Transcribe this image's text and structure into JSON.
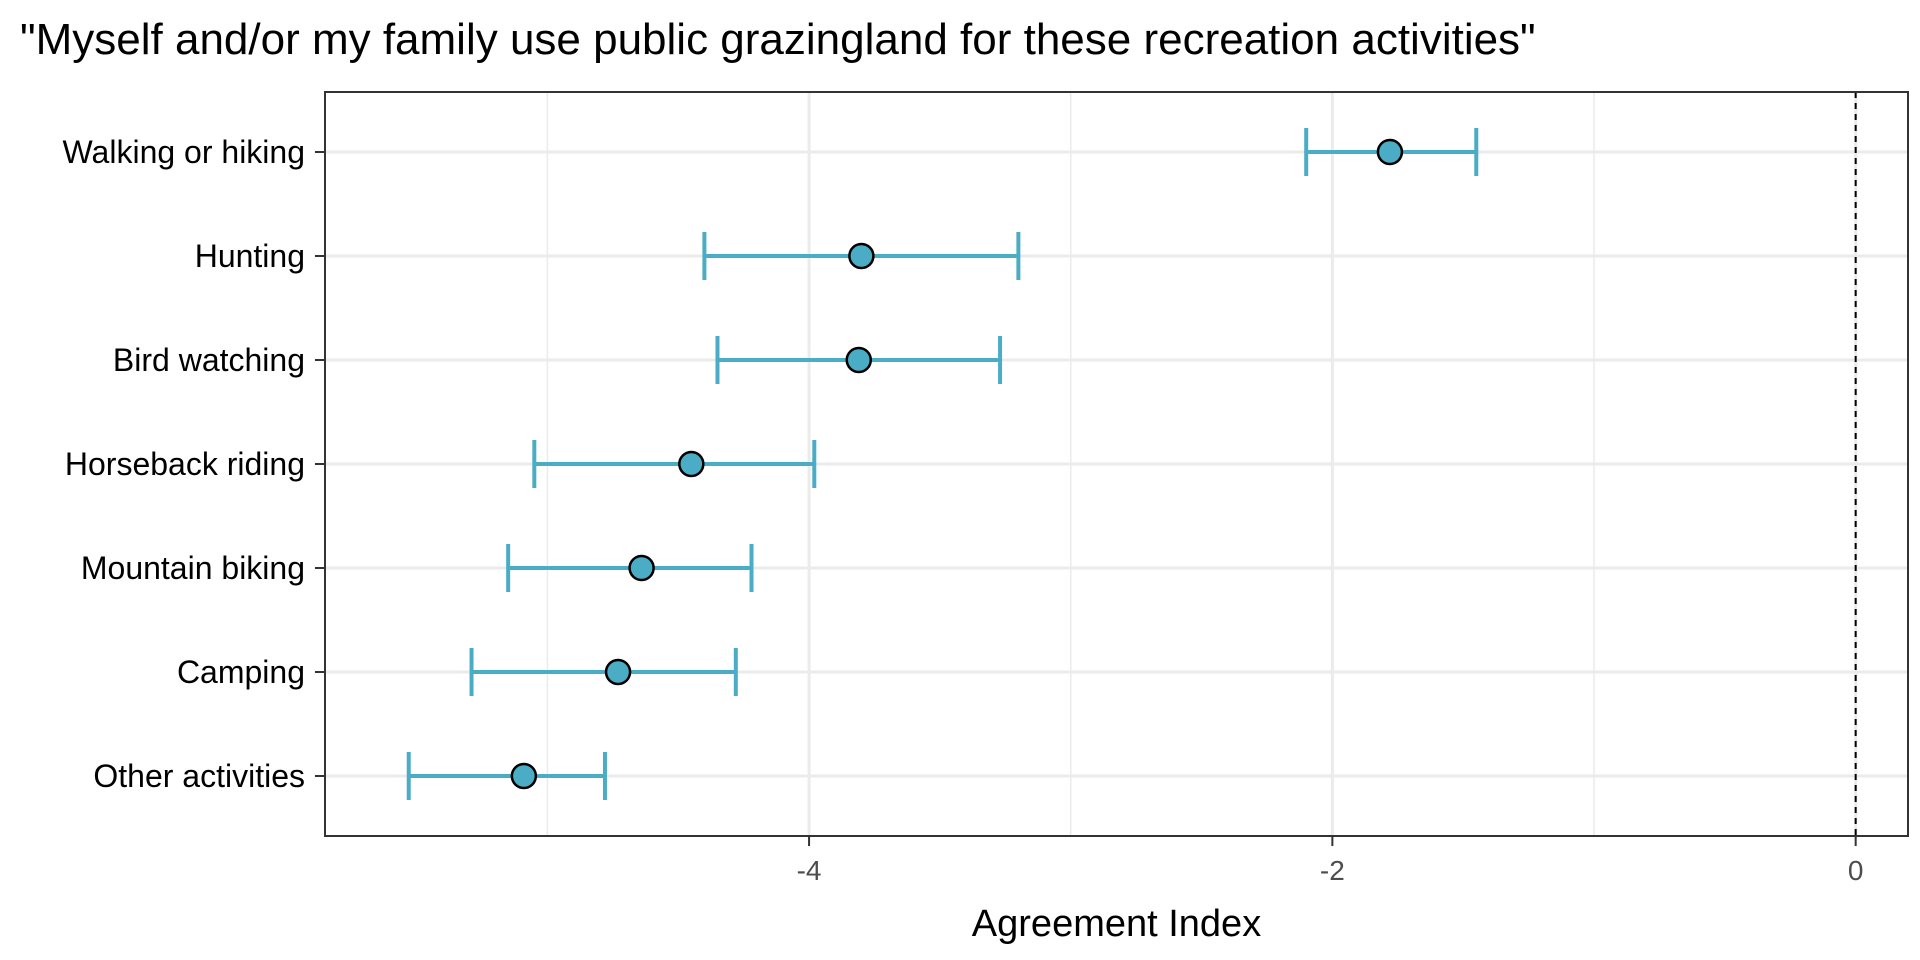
{
  "chart_data": {
    "type": "scatter",
    "subtype": "dot-and-error-bar",
    "title": "\"Myself and/or my family use public grazingland for these recreation activities\"",
    "xlabel": "Agreement Index",
    "ylabel": "",
    "xlim": [
      -5.85,
      0.2
    ],
    "x_ticks": [
      -4,
      -2,
      0
    ],
    "x_tick_labels": [
      "-4",
      "-2",
      "0"
    ],
    "reference_line": {
      "x": 0,
      "style": "dashed"
    },
    "grid": true,
    "legend": "none",
    "categories": [
      "Walking or hiking",
      "Hunting",
      "Bird watching",
      "Horseback riding",
      "Mountain biking",
      "Camping",
      "Other activities"
    ],
    "values": [
      -1.78,
      -3.8,
      -3.81,
      -4.45,
      -4.64,
      -4.73,
      -5.09
    ],
    "lower": [
      -2.1,
      -4.4,
      -4.35,
      -5.05,
      -5.15,
      -5.29,
      -5.53
    ],
    "upper": [
      -1.45,
      -3.2,
      -3.27,
      -3.98,
      -4.22,
      -4.28,
      -4.78
    ],
    "colors": {
      "series": "#4bacc6",
      "point_outline": "#000000",
      "grid": "#ebebeb",
      "panel_border": "#333333",
      "reference_line": "#000000"
    }
  }
}
